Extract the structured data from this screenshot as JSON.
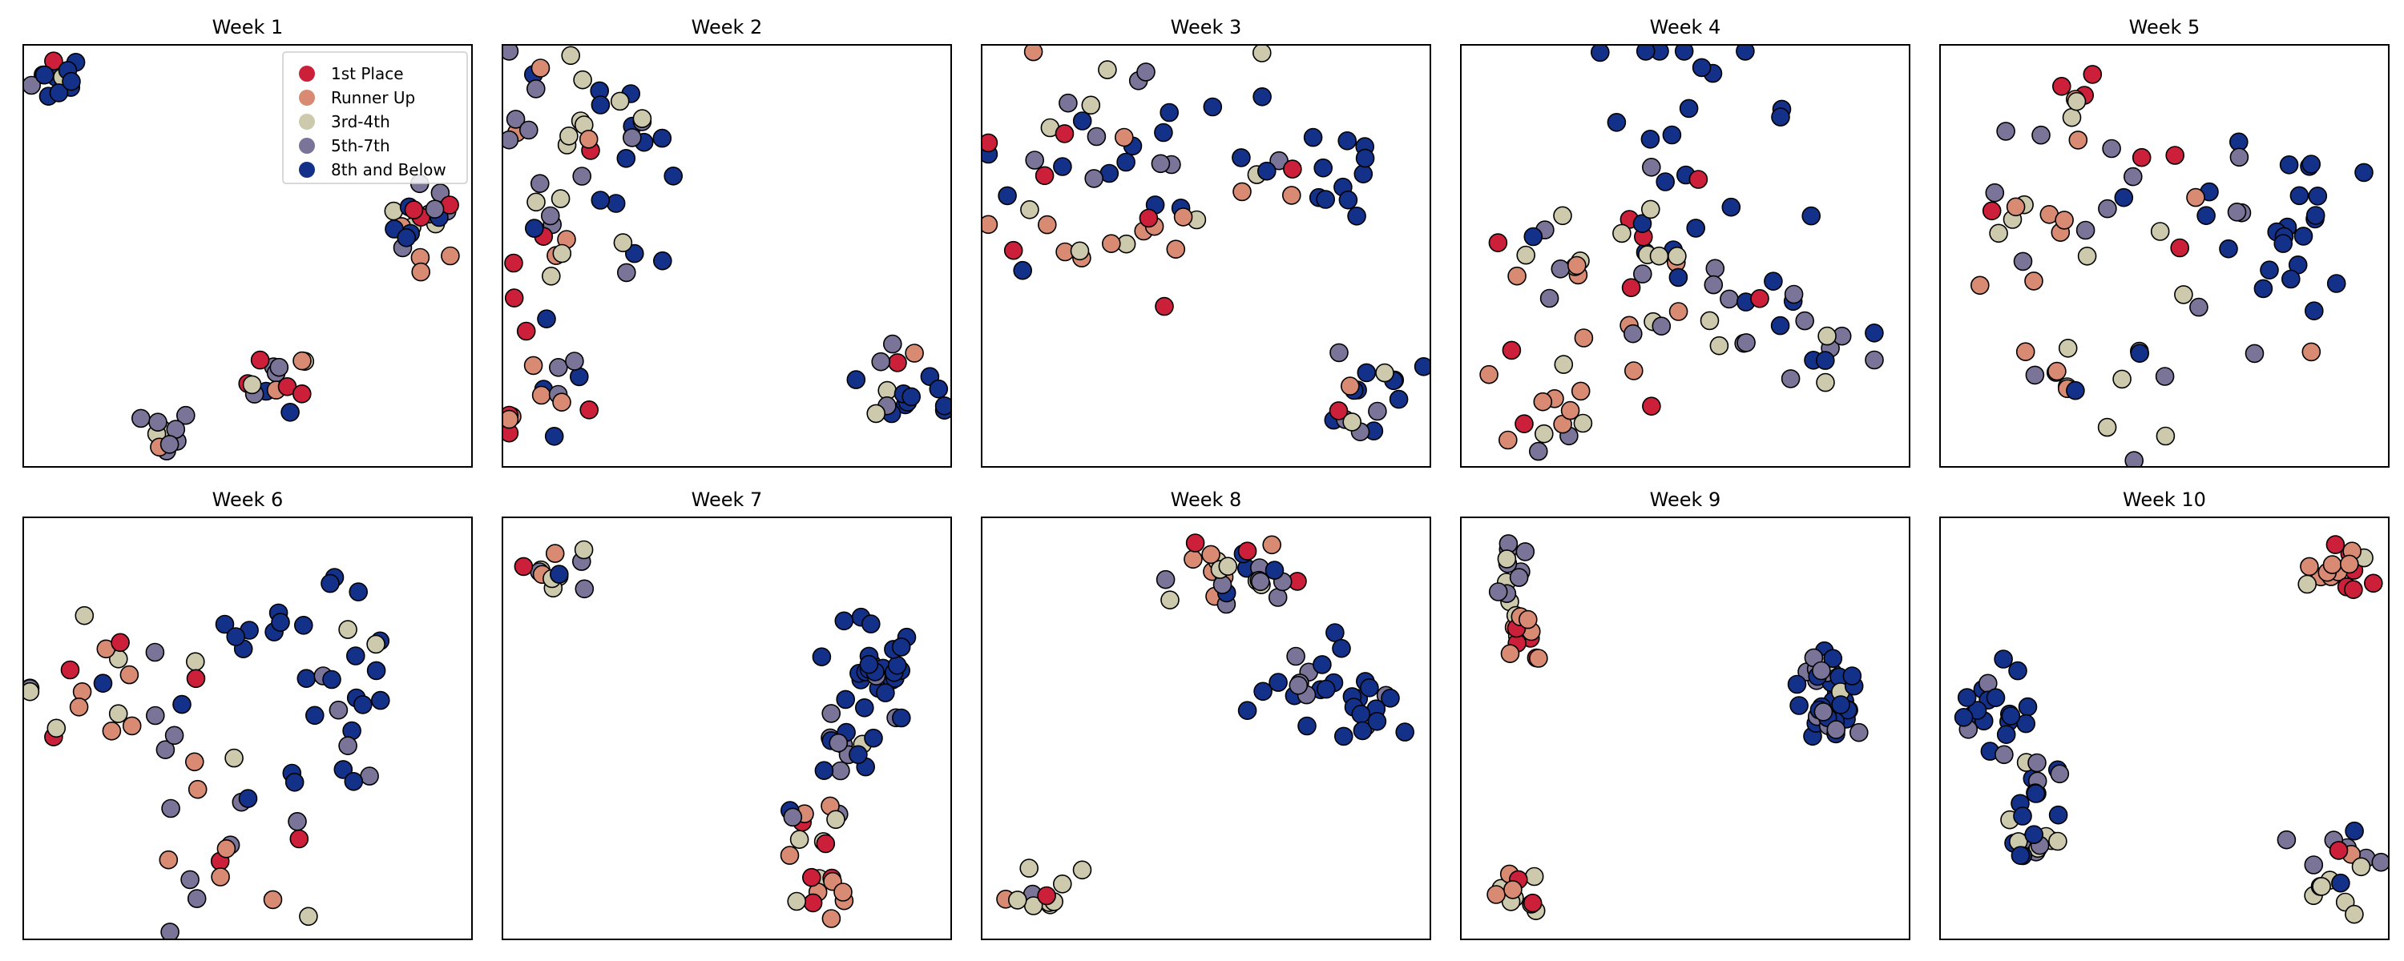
{
  "chart_data": {
    "type": "scatter",
    "grid": false,
    "legend_location": "top-right of Week 1",
    "classes": [
      {
        "key": "first",
        "name": "1st Place",
        "color": "#cc1f3a"
      },
      {
        "key": "runner",
        "name": "Runner Up",
        "color": "#d98a72"
      },
      {
        "key": "third",
        "name": "3rd-4th",
        "color": "#cdc9ac"
      },
      {
        "key": "fifth",
        "name": "5th-7th",
        "color": "#7a7598"
      },
      {
        "key": "eighth",
        "name": "8th and Below",
        "color": "#14318a"
      }
    ],
    "panels": [
      {
        "title": "Week 1",
        "clusters": [
          {
            "cx": 0.08,
            "cy": 0.92,
            "spread": 0.03,
            "n": [
              2,
              1,
              1,
              2,
              9
            ]
          },
          {
            "cx": 0.9,
            "cy": 0.58,
            "spread": 0.045,
            "n": [
              3,
              4,
              3,
              6,
              5
            ]
          },
          {
            "cx": 0.57,
            "cy": 0.2,
            "spread": 0.035,
            "n": [
              4,
              2,
              2,
              4,
              2
            ]
          },
          {
            "cx": 0.32,
            "cy": 0.08,
            "spread": 0.028,
            "n": [
              0,
              1,
              2,
              7,
              0
            ]
          }
        ]
      },
      {
        "title": "Week 2",
        "clusters": [
          {
            "cx": 0.1,
            "cy": 0.82,
            "spread": 0.08,
            "n": [
              1,
              3,
              6,
              6,
              2
            ]
          },
          {
            "cx": 0.28,
            "cy": 0.8,
            "spread": 0.05,
            "n": [
              0,
              0,
              2,
              1,
              7
            ]
          },
          {
            "cx": 0.09,
            "cy": 0.57,
            "spread": 0.07,
            "n": [
              3,
              2,
              4,
              4,
              1
            ]
          },
          {
            "cx": 0.28,
            "cy": 0.53,
            "spread": 0.04,
            "n": [
              0,
              0,
              1,
              1,
              4
            ]
          },
          {
            "cx": 0.1,
            "cy": 0.2,
            "spread": 0.07,
            "n": [
              4,
              5,
              0,
              3,
              4
            ]
          },
          {
            "cx": 0.88,
            "cy": 0.2,
            "spread": 0.06,
            "n": [
              1,
              1,
              2,
              3,
              10
            ]
          }
        ]
      },
      {
        "title": "Week 3",
        "clusters": [
          {
            "cx": 0.15,
            "cy": 0.65,
            "spread": 0.09,
            "n": [
              3,
              3,
              2,
              2,
              6
            ]
          },
          {
            "cx": 0.32,
            "cy": 0.82,
            "spread": 0.08,
            "n": [
              1,
              2,
              4,
              6,
              3
            ]
          },
          {
            "cx": 0.35,
            "cy": 0.55,
            "spread": 0.07,
            "n": [
              2,
              6,
              2,
              0,
              1
            ]
          },
          {
            "cx": 0.58,
            "cy": 0.72,
            "spread": 0.08,
            "n": [
              0,
              2,
              1,
              1,
              6
            ]
          },
          {
            "cx": 0.8,
            "cy": 0.72,
            "spread": 0.06,
            "n": [
              1,
              0,
              0,
              0,
              11
            ]
          },
          {
            "cx": 0.86,
            "cy": 0.15,
            "spread": 0.06,
            "n": [
              1,
              1,
              3,
              4,
              8
            ]
          }
        ]
      },
      {
        "title": "Week 4",
        "clusters": [
          {
            "cx": 0.52,
            "cy": 0.83,
            "spread": 0.12,
            "n": [
              1,
              0,
              0,
              0,
              18
            ]
          },
          {
            "cx": 0.4,
            "cy": 0.5,
            "spread": 0.09,
            "n": [
              2,
              1,
              7,
              4,
              3
            ]
          },
          {
            "cx": 0.2,
            "cy": 0.4,
            "spread": 0.1,
            "n": [
              4,
              4,
              3,
              3,
              1
            ]
          },
          {
            "cx": 0.3,
            "cy": 0.25,
            "spread": 0.08,
            "n": [
              1,
              5,
              1,
              1,
              0
            ]
          },
          {
            "cx": 0.2,
            "cy": 0.1,
            "spread": 0.06,
            "n": [
              0,
              4,
              2,
              2,
              0
            ]
          },
          {
            "cx": 0.62,
            "cy": 0.4,
            "spread": 0.1,
            "n": [
              1,
              1,
              2,
              3,
              3
            ]
          },
          {
            "cx": 0.82,
            "cy": 0.3,
            "spread": 0.09,
            "n": [
              0,
              0,
              2,
              7,
              5
            ]
          }
        ]
      },
      {
        "title": "Week 5",
        "clusters": [
          {
            "cx": 0.25,
            "cy": 0.82,
            "spread": 0.07,
            "n": [
              3,
              2,
              2,
              3,
              0
            ]
          },
          {
            "cx": 0.15,
            "cy": 0.55,
            "spread": 0.08,
            "n": [
              1,
              5,
              3,
              2,
              0
            ]
          },
          {
            "cx": 0.4,
            "cy": 0.62,
            "spread": 0.08,
            "n": [
              2,
              2,
              3,
              3,
              1
            ]
          },
          {
            "cx": 0.7,
            "cy": 0.62,
            "spread": 0.1,
            "n": [
              1,
              0,
              0,
              3,
              15
            ]
          },
          {
            "cx": 0.78,
            "cy": 0.45,
            "spread": 0.08,
            "n": [
              0,
              1,
              0,
              2,
              8
            ]
          },
          {
            "cx": 0.25,
            "cy": 0.28,
            "spread": 0.06,
            "n": [
              0,
              3,
              1,
              2,
              0
            ]
          },
          {
            "cx": 0.42,
            "cy": 0.18,
            "spread": 0.08,
            "n": [
              0,
              0,
              4,
              3,
              2
            ]
          }
        ]
      },
      {
        "title": "Week 6",
        "clusters": [
          {
            "cx": 0.17,
            "cy": 0.65,
            "spread": 0.09,
            "n": [
              4,
              4,
              5,
              3,
              0
            ]
          },
          {
            "cx": 0.62,
            "cy": 0.7,
            "spread": 0.11,
            "n": [
              0,
              0,
              1,
              2,
              18
            ]
          },
          {
            "cx": 0.38,
            "cy": 0.42,
            "spread": 0.1,
            "n": [
              0,
              5,
              3,
              3,
              2
            ]
          },
          {
            "cx": 0.7,
            "cy": 0.45,
            "spread": 0.09,
            "n": [
              0,
              0,
              1,
              2,
              8
            ]
          },
          {
            "cx": 0.48,
            "cy": 0.16,
            "spread": 0.09,
            "n": [
              2,
              3,
              1,
              6,
              0
            ]
          }
        ]
      },
      {
        "title": "Week 7",
        "clusters": [
          {
            "cx": 0.1,
            "cy": 0.85,
            "spread": 0.05,
            "n": [
              1,
              2,
              5,
              3,
              1
            ]
          },
          {
            "cx": 0.82,
            "cy": 0.65,
            "spread": 0.06,
            "n": [
              0,
              0,
              0,
              3,
              25
            ]
          },
          {
            "cx": 0.76,
            "cy": 0.45,
            "spread": 0.05,
            "n": [
              0,
              0,
              1,
              6,
              6
            ]
          },
          {
            "cx": 0.7,
            "cy": 0.3,
            "spread": 0.04,
            "n": [
              1,
              2,
              3,
              2,
              1
            ]
          },
          {
            "cx": 0.72,
            "cy": 0.12,
            "spread": 0.05,
            "n": [
              4,
              6,
              2,
              0,
              0
            ]
          }
        ]
      },
      {
        "title": "Week 8",
        "clusters": [
          {
            "cx": 0.5,
            "cy": 0.85,
            "spread": 0.05,
            "n": [
              2,
              4,
              3,
              3,
              1
            ]
          },
          {
            "cx": 0.62,
            "cy": 0.86,
            "spread": 0.04,
            "n": [
              1,
              2,
              3,
              5,
              3
            ]
          },
          {
            "cx": 0.74,
            "cy": 0.62,
            "spread": 0.05,
            "n": [
              0,
              0,
              0,
              5,
              12
            ]
          },
          {
            "cx": 0.86,
            "cy": 0.55,
            "spread": 0.04,
            "n": [
              0,
              0,
              0,
              2,
              12
            ]
          },
          {
            "cx": 0.13,
            "cy": 0.12,
            "spread": 0.04,
            "n": [
              2,
              1,
              8,
              2,
              0
            ]
          }
        ]
      },
      {
        "title": "Week 9",
        "clusters": [
          {
            "cx": 0.09,
            "cy": 0.87,
            "spread": 0.035,
            "n": [
              0,
              0,
              3,
              8,
              0
            ]
          },
          {
            "cx": 0.13,
            "cy": 0.73,
            "spread": 0.035,
            "n": [
              4,
              6,
              2,
              0,
              0
            ]
          },
          {
            "cx": 0.8,
            "cy": 0.62,
            "spread": 0.035,
            "n": [
              0,
              0,
              3,
              6,
              5
            ]
          },
          {
            "cx": 0.85,
            "cy": 0.55,
            "spread": 0.045,
            "n": [
              0,
              0,
              0,
              6,
              20
            ]
          },
          {
            "cx": 0.13,
            "cy": 0.1,
            "spread": 0.035,
            "n": [
              2,
              3,
              6,
              0,
              0
            ]
          }
        ]
      },
      {
        "title": "Week 10",
        "clusters": [
          {
            "cx": 0.88,
            "cy": 0.88,
            "spread": 0.04,
            "n": [
              6,
              8,
              2,
              0,
              0
            ]
          },
          {
            "cx": 0.1,
            "cy": 0.55,
            "spread": 0.05,
            "n": [
              0,
              0,
              0,
              3,
              18
            ]
          },
          {
            "cx": 0.2,
            "cy": 0.38,
            "spread": 0.04,
            "n": [
              0,
              0,
              1,
              3,
              6
            ]
          },
          {
            "cx": 0.22,
            "cy": 0.24,
            "spread": 0.04,
            "n": [
              0,
              0,
              6,
              3,
              6
            ]
          },
          {
            "cx": 0.89,
            "cy": 0.16,
            "spread": 0.045,
            "n": [
              1,
              1,
              6,
              6,
              3
            ]
          }
        ]
      }
    ]
  }
}
